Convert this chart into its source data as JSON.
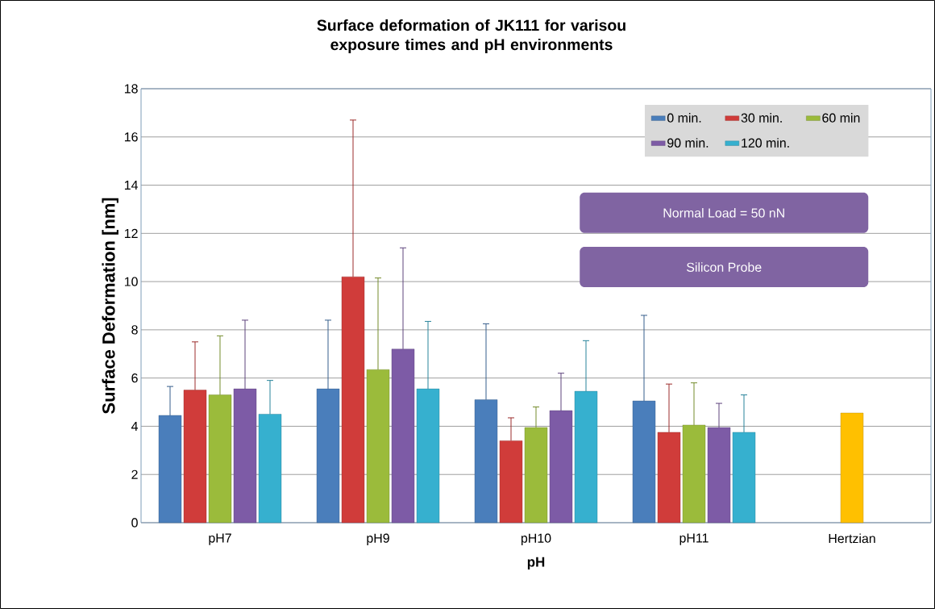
{
  "chart_data": {
    "type": "bar",
    "title": "Surface deformation of JK111 for varisou exposure times and  pH environments",
    "xlabel": "pH",
    "ylabel": "Surface Deformation [nm]",
    "categories": [
      "pH7",
      "pH9",
      "pH10",
      "pH11",
      "Hertzian"
    ],
    "series": [
      {
        "name": "0 min.",
        "color": "#4a7ebb",
        "values": [
          4.45,
          5.55,
          5.1,
          5.05,
          null
        ],
        "errors": [
          [
            4.45,
            5.65
          ],
          [
            5.55,
            8.4
          ],
          [
            5.1,
            8.25
          ],
          [
            5.05,
            8.6
          ],
          null
        ]
      },
      {
        "name": "30 min.",
        "color": "#d03c3a",
        "values": [
          5.5,
          10.2,
          3.4,
          3.75,
          null
        ],
        "errors": [
          [
            5.5,
            7.5
          ],
          [
            10.2,
            16.7
          ],
          [
            3.4,
            4.35
          ],
          [
            3.75,
            5.75
          ],
          null
        ]
      },
      {
        "name": "60 min",
        "color": "#9bbb3b",
        "colors": [
          "#9bbb3b",
          "#9bbb3b",
          "#9bbb3b",
          "#9bbb3b",
          "#ffc000"
        ],
        "values": [
          5.3,
          6.35,
          3.95,
          4.05,
          4.55
        ],
        "errors": [
          [
            5.3,
            7.75
          ],
          [
            6.35,
            10.15
          ],
          [
            3.95,
            4.8
          ],
          [
            4.05,
            5.8
          ],
          null
        ]
      },
      {
        "name": "90 min.",
        "color": "#7d5ba6",
        "values": [
          5.55,
          7.2,
          4.65,
          3.95,
          null
        ],
        "errors": [
          [
            5.55,
            8.4
          ],
          [
            7.2,
            11.4
          ],
          [
            4.65,
            6.2
          ],
          [
            3.95,
            4.95
          ],
          null
        ]
      },
      {
        "name": "120 min.",
        "color": "#36b0cf",
        "values": [
          4.5,
          5.55,
          5.45,
          3.75,
          null
        ],
        "errors": [
          [
            4.5,
            5.9
          ],
          [
            5.55,
            8.35
          ],
          [
            5.45,
            7.55
          ],
          [
            3.75,
            5.3
          ],
          null
        ]
      }
    ],
    "ylim": [
      0,
      18
    ],
    "yticks": [
      0,
      2,
      4,
      6,
      8,
      10,
      12,
      14,
      16,
      18
    ],
    "grid": "y",
    "legend": "top right",
    "annotations": [
      "Normal Load = 50 nN",
      "Silicon Probe"
    ]
  }
}
